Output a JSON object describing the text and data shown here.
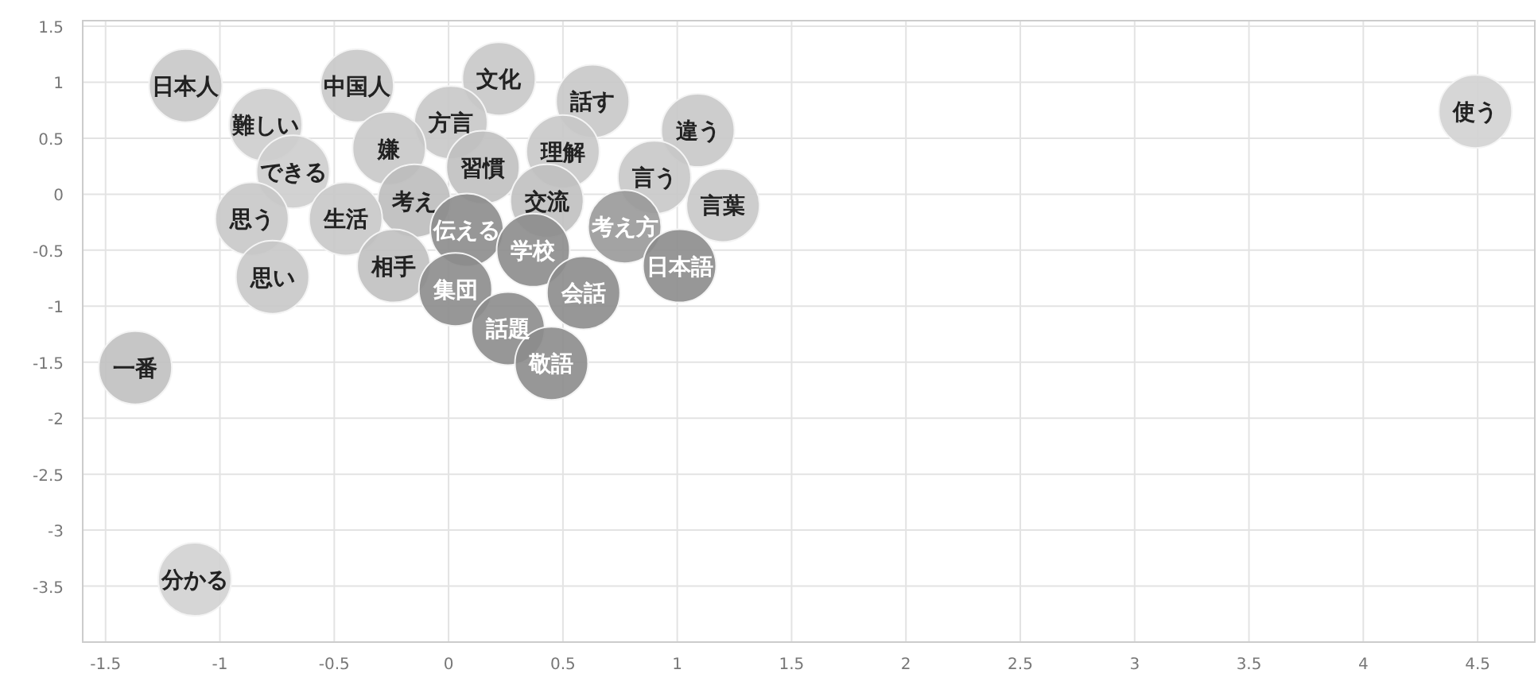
{
  "chart_data": {
    "type": "bubble",
    "xlim": [
      -1.6,
      4.75
    ],
    "ylim": [
      -4,
      1.55
    ],
    "xticks": [
      -1.5,
      -1,
      -0.5,
      0,
      0.5,
      1,
      1.5,
      2,
      2.5,
      3,
      3.5,
      4,
      4.5
    ],
    "yticks": [
      -3.5,
      -3,
      -2.5,
      -2,
      -1.5,
      -1,
      -0.5,
      0,
      0.5,
      1,
      1.5
    ],
    "grid": true,
    "series": [
      {
        "name": "日本人",
        "color": "#c8c8c8",
        "x": [
          -1.15
        ],
        "values": [
          0.97
        ],
        "sizes": [
          1
        ]
      },
      {
        "name": "中国人",
        "color": "#c8c8c8",
        "x": [
          -0.4
        ],
        "values": [
          0.97
        ],
        "sizes": [
          1
        ]
      },
      {
        "name": "文化",
        "color": "#c8c8c8",
        "x": [
          0.22
        ],
        "values": [
          1.03
        ],
        "sizes": [
          1
        ]
      },
      {
        "name": "話す",
        "color": "#c8c8c8",
        "x": [
          0.63
        ],
        "values": [
          0.83
        ],
        "sizes": [
          1
        ]
      },
      {
        "name": "違う",
        "color": "#c8c8c8",
        "x": [
          1.09
        ],
        "values": [
          0.57
        ],
        "sizes": [
          1
        ]
      },
      {
        "name": "使う",
        "color": "#d2d2d2",
        "x": [
          4.49
        ],
        "values": [
          0.74
        ],
        "sizes": [
          1
        ]
      },
      {
        "name": "難しい",
        "color": "#cdcdcd",
        "x": [
          -0.8
        ],
        "values": [
          0.62
        ],
        "sizes": [
          1
        ]
      },
      {
        "name": "方言",
        "color": "#c8c8c8",
        "x": [
          0.01
        ],
        "values": [
          0.64
        ],
        "sizes": [
          1
        ]
      },
      {
        "name": "嫌",
        "color": "#c8c8c8",
        "x": [
          -0.26
        ],
        "values": [
          0.41
        ],
        "sizes": [
          1
        ]
      },
      {
        "name": "理解",
        "color": "#c8c8c8",
        "x": [
          0.5
        ],
        "values": [
          0.38
        ],
        "sizes": [
          1
        ]
      },
      {
        "name": "できる",
        "color": "#cdcdcd",
        "x": [
          -0.68
        ],
        "values": [
          0.2
        ],
        "sizes": [
          1
        ]
      },
      {
        "name": "習慣",
        "color": "#c0c0c0",
        "x": [
          0.15
        ],
        "values": [
          0.24
        ],
        "sizes": [
          1
        ]
      },
      {
        "name": "言う",
        "color": "#c8c8c8",
        "x": [
          0.9
        ],
        "values": [
          0.15
        ],
        "sizes": [
          1
        ]
      },
      {
        "name": "考え",
        "color": "#bdbdbd",
        "x": [
          -0.15
        ],
        "values": [
          -0.06
        ],
        "sizes": [
          1
        ]
      },
      {
        "name": "交流",
        "color": "#c0c0c0",
        "x": [
          0.43
        ],
        "values": [
          -0.06
        ],
        "sizes": [
          1
        ]
      },
      {
        "name": "言葉",
        "color": "#c8c8c8",
        "x": [
          1.2
        ],
        "values": [
          -0.1
        ],
        "sizes": [
          1
        ]
      },
      {
        "name": "思う",
        "color": "#c8c8c8",
        "x": [
          -0.86
        ],
        "values": [
          -0.22
        ],
        "sizes": [
          1
        ]
      },
      {
        "name": "生活",
        "color": "#c8c8c8",
        "x": [
          -0.45
        ],
        "values": [
          -0.22
        ],
        "sizes": [
          1
        ]
      },
      {
        "name": "伝える",
        "color": "#8c8c8c",
        "x": [
          0.08
        ],
        "values": [
          -0.32
        ],
        "sizes": [
          1
        ]
      },
      {
        "name": "考え方",
        "color": "#999999",
        "x": [
          0.77
        ],
        "values": [
          -0.29
        ],
        "sizes": [
          1
        ]
      },
      {
        "name": "学校",
        "color": "#8c8c8c",
        "x": [
          0.37
        ],
        "values": [
          -0.5
        ],
        "sizes": [
          1
        ]
      },
      {
        "name": "日本語",
        "color": "#8c8c8c",
        "x": [
          1.01
        ],
        "values": [
          -0.64
        ],
        "sizes": [
          1
        ]
      },
      {
        "name": "相手",
        "color": "#c0c0c0",
        "x": [
          -0.24
        ],
        "values": [
          -0.64
        ],
        "sizes": [
          1
        ]
      },
      {
        "name": "思い",
        "color": "#c8c8c8",
        "x": [
          -0.77
        ],
        "values": [
          -0.74
        ],
        "sizes": [
          1
        ]
      },
      {
        "name": "集団",
        "color": "#8c8c8c",
        "x": [
          0.03
        ],
        "values": [
          -0.85
        ],
        "sizes": [
          1
        ]
      },
      {
        "name": "会話",
        "color": "#8c8c8c",
        "x": [
          0.59
        ],
        "values": [
          -0.88
        ],
        "sizes": [
          1
        ]
      },
      {
        "name": "話題",
        "color": "#8c8c8c",
        "x": [
          0.26
        ],
        "values": [
          -1.2
        ],
        "sizes": [
          1
        ]
      },
      {
        "name": "敬語",
        "color": "#8c8c8c",
        "x": [
          0.45
        ],
        "values": [
          -1.51
        ],
        "sizes": [
          1
        ]
      },
      {
        "name": "一番",
        "color": "#c0c0c0",
        "x": [
          -1.37
        ],
        "values": [
          -1.55
        ],
        "sizes": [
          1
        ]
      },
      {
        "name": "分かる",
        "color": "#d2d2d2",
        "x": [
          -1.11
        ],
        "values": [
          -3.44
        ],
        "sizes": [
          1
        ]
      }
    ]
  }
}
